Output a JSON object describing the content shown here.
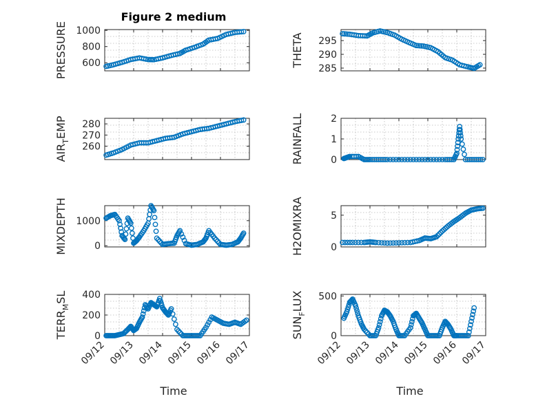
{
  "figure": {
    "title": "Figure 2 medium",
    "x_label": "Time",
    "x_ticks": [
      "09/12",
      "09/13",
      "09/14",
      "09/15",
      "09/16",
      "09/17"
    ]
  },
  "style": {
    "marker_color": "#0072bd",
    "marker": "open-circle"
  },
  "chart_data": [
    {
      "type": "scatter",
      "id": "pressure",
      "ylabel": "PRESSURE",
      "title": "Figure 2 medium",
      "xlim": [
        0,
        5
      ],
      "ylim": [
        500,
        1010
      ],
      "yticks": [
        600,
        800,
        1000
      ],
      "grid": true,
      "x": [
        0.05,
        0.3,
        0.6,
        0.9,
        1.2,
        1.5,
        1.7,
        2.0,
        2.3,
        2.6,
        2.8,
        3.1,
        3.4,
        3.6,
        3.9,
        4.2,
        4.5,
        4.8
      ],
      "y": [
        555,
        575,
        605,
        640,
        660,
        640,
        638,
        660,
        690,
        715,
        755,
        790,
        830,
        880,
        900,
        950,
        975,
        985
      ]
    },
    {
      "type": "scatter",
      "id": "theta",
      "ylabel": "THETA",
      "xlim": [
        0,
        5
      ],
      "ylim": [
        284,
        299
      ],
      "yticks": [
        285,
        290,
        295
      ],
      "grid": true,
      "x": [
        0.05,
        0.3,
        0.6,
        0.9,
        1.1,
        1.35,
        1.6,
        1.85,
        2.1,
        2.35,
        2.6,
        2.85,
        3.1,
        3.35,
        3.6,
        3.85,
        4.1,
        4.4,
        4.6,
        4.8
      ],
      "y": [
        297.5,
        297.3,
        296.8,
        296.7,
        297.8,
        298.5,
        297.9,
        297.0,
        295.5,
        294.3,
        293.2,
        293.0,
        292.4,
        291.0,
        288.8,
        287.9,
        286.2,
        285.4,
        284.9,
        286.2
      ]
    },
    {
      "type": "scatter",
      "id": "air_temp",
      "ylabel": "AIR_TEMP",
      "xlim": [
        0,
        5
      ],
      "ylim": [
        248,
        285
      ],
      "yticks": [
        260,
        270,
        280
      ],
      "grid": true,
      "x": [
        0.05,
        0.3,
        0.6,
        0.9,
        1.2,
        1.5,
        1.8,
        2.1,
        2.4,
        2.7,
        3.0,
        3.3,
        3.6,
        3.9,
        4.2,
        4.5,
        4.8
      ],
      "y": [
        252,
        254,
        257,
        261,
        263,
        263,
        265,
        267,
        268,
        271,
        273,
        275,
        276,
        278,
        280,
        282,
        283.5
      ]
    },
    {
      "type": "scatter",
      "id": "rainfall",
      "ylabel": "RAINFALL",
      "xlim": [
        0,
        5
      ],
      "ylim": [
        0,
        2
      ],
      "yticks": [
        0,
        1,
        2
      ],
      "grid": true,
      "x": [
        0.1,
        0.2,
        0.3,
        0.6,
        0.8,
        1.0,
        1.3,
        1.6,
        2.0,
        2.4,
        2.8,
        3.2,
        3.6,
        3.9,
        4.0,
        4.05,
        4.1,
        4.15,
        4.3,
        4.6,
        4.9
      ],
      "y": [
        0.05,
        0.1,
        0.15,
        0.15,
        0,
        0,
        0,
        0,
        0,
        0,
        0,
        0,
        0,
        0,
        0.3,
        1.0,
        1.6,
        1.0,
        0,
        0,
        0
      ]
    },
    {
      "type": "scatter",
      "id": "mixdepth",
      "ylabel": "MIXDEPTH",
      "xlim": [
        0,
        5
      ],
      "ylim": [
        -50,
        1600
      ],
      "yticks": [
        0,
        1000
      ],
      "grid": true,
      "x": [
        0.05,
        0.2,
        0.35,
        0.5,
        0.6,
        0.7,
        0.8,
        0.9,
        1.0,
        1.1,
        1.2,
        1.35,
        1.5,
        1.6,
        1.7,
        1.8,
        2.0,
        2.2,
        2.4,
        2.5,
        2.6,
        2.8,
        3.0,
        3.2,
        3.4,
        3.5,
        3.6,
        3.8,
        4.0,
        4.2,
        4.4,
        4.6,
        4.7,
        4.8
      ],
      "y": [
        1100,
        1200,
        1250,
        1000,
        400,
        250,
        1100,
        900,
        100,
        200,
        350,
        600,
        900,
        1600,
        1400,
        300,
        50,
        80,
        100,
        400,
        600,
        80,
        20,
        50,
        150,
        300,
        600,
        300,
        50,
        20,
        50,
        150,
        300,
        500
      ]
    },
    {
      "type": "scatter",
      "id": "h2omixra",
      "ylabel": "H2OMIXRA",
      "xlim": [
        0,
        5
      ],
      "ylim": [
        0,
        6.5
      ],
      "yticks": [
        0,
        5
      ],
      "grid": true,
      "x": [
        0.05,
        0.4,
        0.8,
        1.0,
        1.2,
        1.6,
        2.0,
        2.4,
        2.7,
        2.9,
        3.1,
        3.3,
        3.5,
        3.7,
        3.9,
        4.1,
        4.3,
        4.5,
        4.7,
        4.9
      ],
      "y": [
        0.7,
        0.7,
        0.7,
        0.8,
        0.7,
        0.6,
        0.65,
        0.7,
        1.0,
        1.4,
        1.3,
        1.6,
        2.5,
        3.3,
        4.0,
        4.6,
        5.3,
        5.8,
        6.0,
        6.1
      ]
    },
    {
      "type": "scatter",
      "id": "terr_msl",
      "ylabel": "TERR_MSL",
      "xlim": [
        0,
        5
      ],
      "ylim": [
        0,
        400
      ],
      "yticks": [
        0,
        200,
        400
      ],
      "grid": true,
      "x": [
        0.05,
        0.2,
        0.35,
        0.5,
        0.65,
        0.8,
        0.9,
        1.0,
        1.1,
        1.2,
        1.3,
        1.4,
        1.5,
        1.6,
        1.7,
        1.8,
        1.9,
        2.0,
        2.1,
        2.2,
        2.3,
        2.5,
        2.7,
        2.9,
        3.1,
        3.3,
        3.5,
        3.7,
        3.9,
        4.1,
        4.3,
        4.5,
        4.7,
        4.9
      ],
      "y": [
        0,
        0,
        0,
        10,
        20,
        60,
        90,
        50,
        70,
        130,
        180,
        300,
        260,
        320,
        300,
        280,
        360,
        270,
        230,
        200,
        260,
        60,
        0,
        0,
        0,
        0,
        80,
        180,
        150,
        120,
        110,
        130,
        110,
        150
      ]
    },
    {
      "type": "scatter",
      "id": "sun_flux",
      "ylabel": "SUN_FLUX",
      "xlim": [
        0,
        5
      ],
      "ylim": [
        0,
        520
      ],
      "yticks": [
        0,
        500
      ],
      "grid": true,
      "x": [
        0.1,
        0.2,
        0.3,
        0.4,
        0.5,
        0.6,
        0.7,
        0.8,
        1.0,
        1.2,
        1.3,
        1.4,
        1.5,
        1.6,
        1.7,
        1.8,
        1.9,
        2.0,
        2.2,
        2.4,
        2.5,
        2.6,
        2.7,
        2.8,
        2.9,
        3.0,
        3.2,
        3.4,
        3.5,
        3.6,
        3.7,
        3.8,
        3.9,
        4.0,
        4.2,
        4.4,
        4.5,
        4.6
      ],
      "y": [
        220,
        300,
        420,
        460,
        380,
        250,
        150,
        80,
        0,
        0,
        100,
        250,
        320,
        300,
        250,
        180,
        80,
        0,
        0,
        100,
        250,
        280,
        220,
        160,
        80,
        0,
        0,
        0,
        100,
        180,
        140,
        80,
        0,
        0,
        0,
        0,
        180,
        350
      ]
    }
  ]
}
